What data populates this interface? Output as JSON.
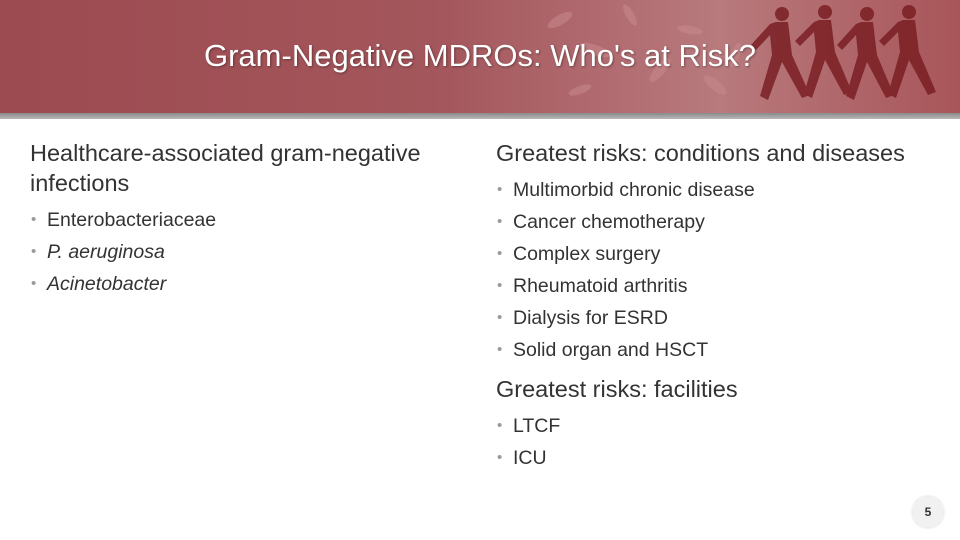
{
  "slide": {
    "title": "Gram-Negative MDROs: Who's at Risk?",
    "page_number": "5"
  },
  "left_column": {
    "heading": "Healthcare-associated gram-negative infections",
    "bullets": [
      {
        "text": "Enterobacteriaceae",
        "italic": false
      },
      {
        "text": "P. aeruginosa",
        "italic": true
      },
      {
        "text": "Acinetobacter",
        "italic": true
      }
    ]
  },
  "right_column": {
    "sections": [
      {
        "heading": "Greatest risks: conditions and diseases",
        "bullets": [
          "Multimorbid chronic disease",
          "Cancer chemotherapy",
          "Complex surgery",
          "Rheumatoid arthritis",
          "Dialysis for ESRD",
          "Solid organ and HSCT"
        ]
      },
      {
        "heading": "Greatest risks: facilities",
        "bullets": [
          "LTCF",
          "ICU"
        ]
      }
    ]
  },
  "colors": {
    "banner": "#a3565b",
    "text": "#333333",
    "bullet": "#9a9a9a"
  }
}
